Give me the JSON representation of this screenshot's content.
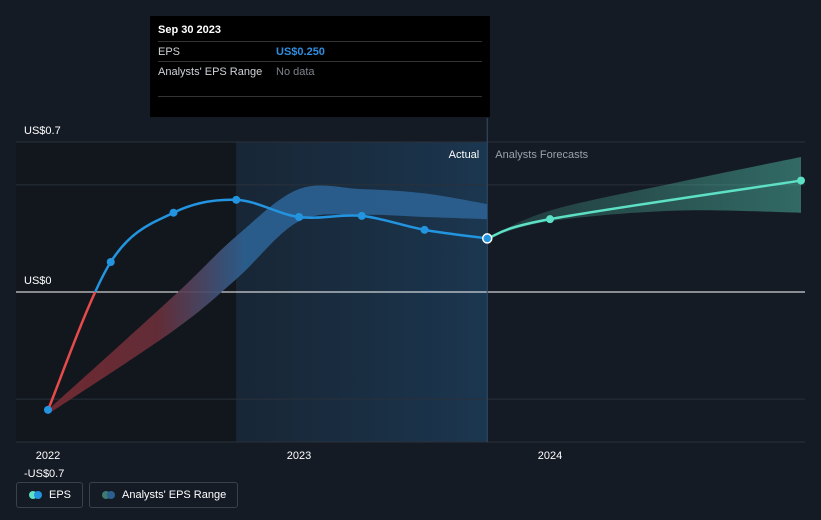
{
  "tooltip": {
    "date": "Sep 30 2023",
    "rows": [
      {
        "label": "EPS",
        "value": "US$0.250"
      },
      {
        "label": "Analysts' EPS Range",
        "value": "No data"
      }
    ]
  },
  "regions": {
    "actual_label": "Actual",
    "forecast_label": "Analysts Forecasts"
  },
  "legend": {
    "eps_label": "EPS",
    "range_label": "Analysts' EPS Range"
  },
  "colors": {
    "background": "#151b24",
    "eps_actual": "#2394df",
    "eps_negative": "#e64b4b",
    "forecast": "#5de0c5",
    "range_band": "#2b5f8f",
    "highlight": "#1c3a55"
  },
  "chart_data": {
    "type": "line",
    "title": "",
    "xlabel": "",
    "ylabel": "",
    "x_ticks": [
      {
        "label": "2022",
        "x": 2022.0
      },
      {
        "label": "2023",
        "x": 2023.0
      },
      {
        "label": "2024",
        "x": 2024.0
      }
    ],
    "y_ticks": [
      {
        "label": "US$0.7",
        "y": 0.7
      },
      {
        "label": "US$0",
        "y": 0.0
      },
      {
        "label": "-US$0.7",
        "y": -0.7
      }
    ],
    "xlim": [
      2021.88,
      2025.0
    ],
    "ylim": [
      -0.7,
      0.7
    ],
    "series": [
      {
        "name": "EPS",
        "points": [
          {
            "x": 2022.0,
            "y": -0.55
          },
          {
            "x": 2022.25,
            "y": 0.14
          },
          {
            "x": 2022.5,
            "y": 0.37
          },
          {
            "x": 2022.75,
            "y": 0.43
          },
          {
            "x": 2023.0,
            "y": 0.35
          },
          {
            "x": 2023.25,
            "y": 0.355
          },
          {
            "x": 2023.5,
            "y": 0.29
          },
          {
            "x": 2023.75,
            "y": 0.25
          }
        ]
      },
      {
        "name": "EPS Forecast",
        "points": [
          {
            "x": 2023.75,
            "y": 0.25
          },
          {
            "x": 2024.0,
            "y": 0.34
          },
          {
            "x": 2025.0,
            "y": 0.52
          }
        ]
      }
    ],
    "actual_range_band": [
      {
        "x": 2022.0,
        "upper": -0.55,
        "lower": -0.57
      },
      {
        "x": 2022.5,
        "upper": -0.02,
        "lower": -0.18
      },
      {
        "x": 2022.75,
        "upper": 0.26,
        "lower": 0.06
      },
      {
        "x": 2023.0,
        "upper": 0.48,
        "lower": 0.33
      },
      {
        "x": 2023.25,
        "upper": 0.48,
        "lower": 0.36
      },
      {
        "x": 2023.5,
        "upper": 0.46,
        "lower": 0.35
      },
      {
        "x": 2023.75,
        "upper": 0.41,
        "lower": 0.34
      }
    ],
    "forecast_range_band": [
      {
        "x": 2023.75,
        "upper": 0.25,
        "lower": 0.25
      },
      {
        "x": 2024.0,
        "upper": 0.38,
        "lower": 0.33
      },
      {
        "x": 2024.5,
        "upper": 0.51,
        "lower": 0.38
      },
      {
        "x": 2025.0,
        "upper": 0.63,
        "lower": 0.37
      }
    ],
    "highlight_range": [
      2022.75,
      2023.75
    ],
    "zero_line": 0.0
  }
}
